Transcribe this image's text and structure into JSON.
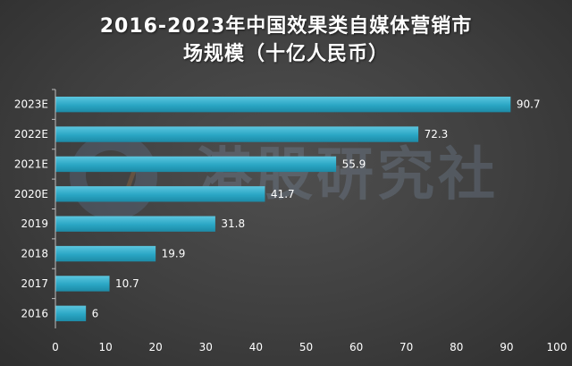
{
  "title_line1": "2016-2023年中国效果类自媒体营销市",
  "title_line2": "场规模（十亿人民币）",
  "watermark_text": "港股研究社",
  "colors": {
    "bar": "#2aa6c4",
    "bar_highlight": "#5cc6df",
    "axis": "#bfbfbf",
    "grid": "#5a5a5a",
    "text": "#ffffff"
  },
  "chart_data": {
    "type": "bar",
    "orientation": "horizontal",
    "title": "2016-2023年中国效果类自媒体营销市场规模（十亿人民币）",
    "categories": [
      "2016",
      "2017",
      "2018",
      "2019",
      "2020E",
      "2021E",
      "2022E",
      "2023E"
    ],
    "values": [
      6,
      10.7,
      19.9,
      31.8,
      41.7,
      55.9,
      72.3,
      90.7
    ],
    "value_labels": [
      "6",
      "10.7",
      "19.9",
      "31.8",
      "41.7",
      "55.9",
      "72.3",
      "90.7"
    ],
    "xlim": [
      0,
      100
    ],
    "xticks": [
      0,
      10,
      20,
      30,
      40,
      50,
      60,
      70,
      80,
      90,
      100
    ],
    "xtick_labels": [
      "0",
      "10",
      "20",
      "30",
      "40",
      "50",
      "60",
      "70",
      "80",
      "90",
      "100"
    ],
    "xlabel": "",
    "ylabel": "",
    "grid": false,
    "legend": "none"
  }
}
